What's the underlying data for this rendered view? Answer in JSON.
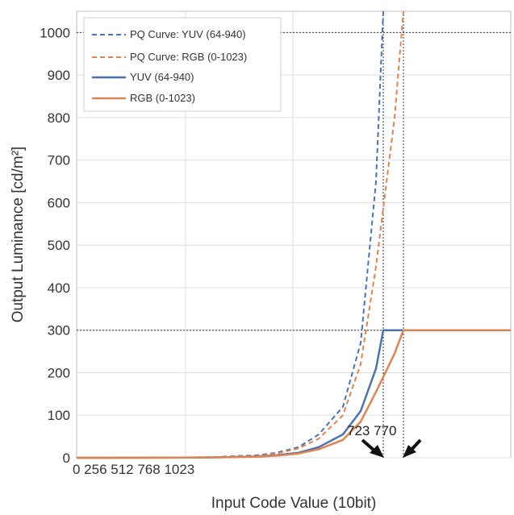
{
  "chart_data": {
    "type": "line",
    "xlabel": "Input Code Value (10bit)",
    "ylabel": "Output Luminance [cd/m²]",
    "xlim": [
      0,
      4000
    ],
    "ylim": [
      0,
      1050
    ],
    "x_tick_text": "0 256 512 768 1023",
    "y_ticks": [
      0,
      100,
      200,
      300,
      400,
      500,
      600,
      700,
      800,
      900,
      1000
    ],
    "grid": true,
    "legend_position": "top-left",
    "annotation_text": "723 770",
    "annotation_x": [
      723,
      770
    ],
    "reference_lines": {
      "y": [
        300,
        1000
      ],
      "x": [
        723,
        770
      ]
    },
    "series": [
      {
        "name": "PQ Curve: YUV (64-940)",
        "style": "dashed",
        "color": "#4c72b0",
        "x": [
          0,
          200,
          300,
          400,
          450,
          500,
          550,
          600,
          650,
          700,
          723
        ],
        "y": [
          0,
          0.3,
          1.5,
          6,
          12,
          25,
          55,
          120,
          270,
          650,
          1050
        ]
      },
      {
        "name": "PQ Curve: RGB (0-1023)",
        "style": "dashed",
        "color": "#dd8452",
        "x": [
          0,
          200,
          300,
          400,
          450,
          500,
          550,
          600,
          650,
          700,
          750,
          770
        ],
        "y": [
          0,
          0.3,
          1.2,
          5,
          10,
          22,
          45,
          100,
          220,
          450,
          800,
          1050
        ]
      },
      {
        "name": "YUV (64-940)",
        "style": "solid",
        "color": "#4c72b0",
        "x": [
          0,
          200,
          300,
          400,
          450,
          500,
          550,
          600,
          650,
          700,
          723,
          770
        ],
        "y": [
          0,
          0.2,
          0.8,
          3,
          6,
          12,
          25,
          55,
          110,
          210,
          300,
          300
        ]
      },
      {
        "name": "RGB (0-1023)",
        "style": "solid",
        "color": "#dd8452",
        "x": [
          0,
          200,
          300,
          400,
          450,
          500,
          550,
          600,
          650,
          700,
          750,
          770,
          1023
        ],
        "y": [
          0,
          0.2,
          0.7,
          2.5,
          5,
          10,
          20,
          42,
          85,
          155,
          245,
          300,
          300
        ]
      }
    ]
  }
}
